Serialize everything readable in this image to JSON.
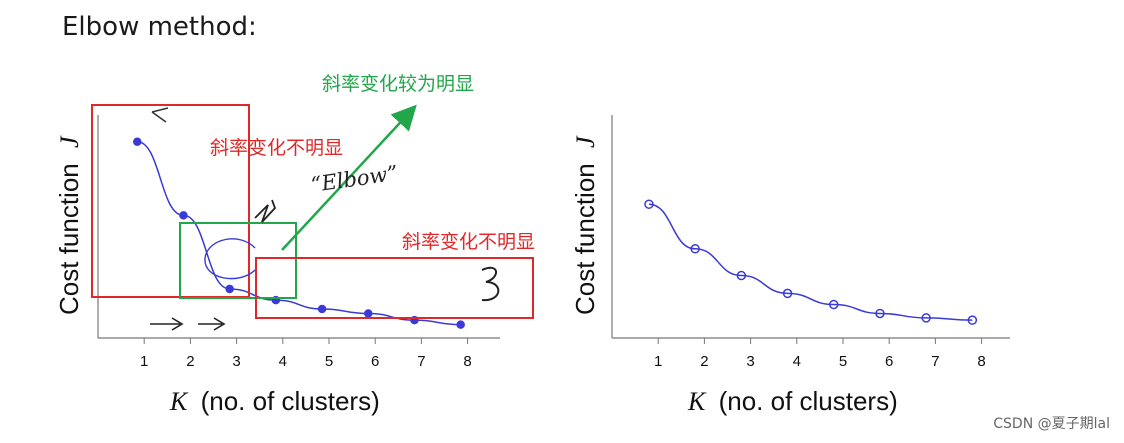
{
  "title": "Elbow method:",
  "watermark": "CSDN @夏子期lal",
  "annotations": {
    "green_label": "斜率变化较为明显",
    "red_label_left": "斜率变化不明显",
    "red_label_right": "斜率变化不明显",
    "elbow_label": "“Elbow”"
  },
  "colors": {
    "curve": "#3a3ad6",
    "red": "#e02828",
    "green": "#22a64a",
    "axis": "#777777"
  },
  "chart_data": [
    {
      "type": "line",
      "xlabel_symbol": "K",
      "xlabel": "(no. of clusters)",
      "ylabel_text": "Cost function",
      "ylabel_symbol": "J",
      "categories": [
        1,
        2,
        3,
        4,
        5,
        6,
        7,
        8
      ],
      "ticks": [
        "1",
        "2",
        "3",
        "4",
        "5",
        "6",
        "7",
        "8"
      ],
      "x": [
        0.85,
        1.85,
        2.85,
        3.85,
        4.85,
        5.85,
        6.85,
        7.85
      ],
      "values": [
        0.88,
        0.55,
        0.22,
        0.17,
        0.13,
        0.11,
        0.08,
        0.06
      ],
      "ylim": [
        0,
        1
      ],
      "xlim": [
        0,
        8
      ]
    },
    {
      "type": "line",
      "xlabel_symbol": "K",
      "xlabel": "(no. of clusters)",
      "ylabel_text": "Cost function",
      "ylabel_symbol": "J",
      "categories": [
        1,
        2,
        3,
        4,
        5,
        6,
        7,
        8
      ],
      "ticks": [
        "1",
        "2",
        "3",
        "4",
        "5",
        "6",
        "7",
        "8"
      ],
      "x": [
        0.8,
        1.8,
        2.8,
        3.8,
        4.8,
        5.8,
        6.8,
        7.8
      ],
      "values": [
        0.6,
        0.4,
        0.28,
        0.2,
        0.15,
        0.11,
        0.09,
        0.08
      ],
      "ylim": [
        0,
        1
      ],
      "xlim": [
        0,
        8
      ]
    }
  ]
}
